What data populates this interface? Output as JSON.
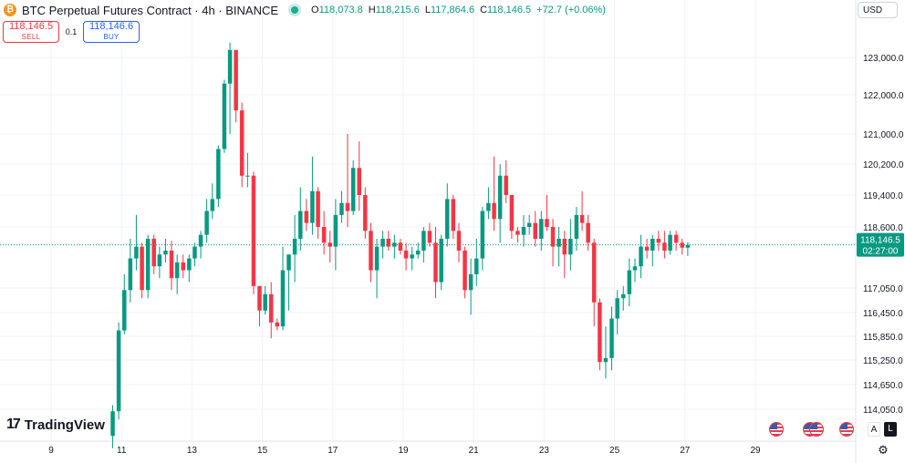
{
  "header": {
    "symbol": "BTC Perpetual Futures Contract · 4h · BINANCE",
    "ohlc": {
      "open_label": "O",
      "open": "118,073.8",
      "high_label": "H",
      "high": "118,215.6",
      "low_label": "L",
      "low": "117,864.6",
      "close_label": "C",
      "close": "118,146.5",
      "change": "+72.7 (+0.06%)"
    }
  },
  "trade": {
    "sell_price": "118,146.5",
    "sell_label": "SELL",
    "spread": "0.1",
    "buy_price": "118,146.6",
    "buy_label": "BUY"
  },
  "currency": "USD",
  "logo": {
    "mark": "17",
    "text": "TradingView"
  },
  "scale_buttons": {
    "auto": "A",
    "log": "L"
  },
  "icons": {
    "settings": "gear-icon",
    "symbol": "bitcoin-icon",
    "events": "us-flag-icon"
  },
  "colors": {
    "up": "#089981",
    "down": "#f23645",
    "buy": "#2962ff",
    "grid": "#f0f3fa",
    "price_line": "#089981"
  },
  "chart_data": {
    "type": "candlestick",
    "price_axis_labels": [
      "123,000.0",
      "122,000.0",
      "121,000.0",
      "120,200.0",
      "119,400.0",
      "118,600.0",
      "117,050.0",
      "116,450.0",
      "115,850.0",
      "115,250.0",
      "114,650.0",
      "114,050.0"
    ],
    "price_axis_values": [
      123000,
      122000,
      121000,
      120200,
      119400,
      118600,
      117050,
      116450,
      115850,
      115250,
      114650,
      114050
    ],
    "time_axis_labels": [
      "9",
      "11",
      "13",
      "15",
      "17",
      "19",
      "21",
      "23",
      "25",
      "27",
      "29"
    ],
    "time_axis_days": [
      9,
      11,
      13,
      15,
      17,
      19,
      21,
      23,
      25,
      27,
      29
    ],
    "current_price": {
      "label": "118,146.5",
      "countdown": "02:27:00",
      "value": 118146.5
    },
    "interval_hours": 4,
    "candles": [
      {
        "d": 10.75,
        "o": 113400,
        "h": 114150,
        "l": 113100,
        "c": 114000
      },
      {
        "d": 10.92,
        "o": 114000,
        "h": 116200,
        "l": 113800,
        "c": 116000
      },
      {
        "d": 11.08,
        "o": 116000,
        "h": 117400,
        "l": 115900,
        "c": 117000
      },
      {
        "d": 11.25,
        "o": 117000,
        "h": 118300,
        "l": 116700,
        "c": 117800
      },
      {
        "d": 11.42,
        "o": 117800,
        "h": 118900,
        "l": 117500,
        "c": 118100
      },
      {
        "d": 11.58,
        "o": 118100,
        "h": 118200,
        "l": 116800,
        "c": 117000
      },
      {
        "d": 11.75,
        "o": 117000,
        "h": 118400,
        "l": 116800,
        "c": 118300
      },
      {
        "d": 11.92,
        "o": 118300,
        "h": 118400,
        "l": 117400,
        "c": 117600
      },
      {
        "d": 12.08,
        "o": 117600,
        "h": 118100,
        "l": 117300,
        "c": 117900
      },
      {
        "d": 12.25,
        "o": 117900,
        "h": 118300,
        "l": 117700,
        "c": 118000
      },
      {
        "d": 12.42,
        "o": 118000,
        "h": 118250,
        "l": 117000,
        "c": 117300
      },
      {
        "d": 12.58,
        "o": 117300,
        "h": 117900,
        "l": 116900,
        "c": 117700
      },
      {
        "d": 12.75,
        "o": 117700,
        "h": 117900,
        "l": 117300,
        "c": 117500
      },
      {
        "d": 12.92,
        "o": 117500,
        "h": 117900,
        "l": 117200,
        "c": 117800
      },
      {
        "d": 13.08,
        "o": 117800,
        "h": 118200,
        "l": 117600,
        "c": 118100
      },
      {
        "d": 13.25,
        "o": 118100,
        "h": 118500,
        "l": 117800,
        "c": 118400
      },
      {
        "d": 13.42,
        "o": 118400,
        "h": 119300,
        "l": 118200,
        "c": 119000
      },
      {
        "d": 13.58,
        "o": 119000,
        "h": 119700,
        "l": 118800,
        "c": 119300
      },
      {
        "d": 13.75,
        "o": 119300,
        "h": 120700,
        "l": 119100,
        "c": 120600
      },
      {
        "d": 13.92,
        "o": 120600,
        "h": 122400,
        "l": 120500,
        "c": 122300
      },
      {
        "d": 14.08,
        "o": 122300,
        "h": 123400,
        "l": 121000,
        "c": 123200
      },
      {
        "d": 14.25,
        "o": 123200,
        "h": 123200,
        "l": 121300,
        "c": 121600
      },
      {
        "d": 14.42,
        "o": 121600,
        "h": 121800,
        "l": 119600,
        "c": 119900
      },
      {
        "d": 14.58,
        "o": 119900,
        "h": 120500,
        "l": 119600,
        "c": 119900
      },
      {
        "d": 14.75,
        "o": 119900,
        "h": 120000,
        "l": 116900,
        "c": 117100
      },
      {
        "d": 14.92,
        "o": 117100,
        "h": 117100,
        "l": 116100,
        "c": 116500
      },
      {
        "d": 15.08,
        "o": 116500,
        "h": 117100,
        "l": 116400,
        "c": 116900
      },
      {
        "d": 15.25,
        "o": 116900,
        "h": 117200,
        "l": 115800,
        "c": 116200
      },
      {
        "d": 15.42,
        "o": 116200,
        "h": 116300,
        "l": 116000,
        "c": 116100
      },
      {
        "d": 15.58,
        "o": 116100,
        "h": 118100,
        "l": 116000,
        "c": 117500
      },
      {
        "d": 15.75,
        "o": 117500,
        "h": 117800,
        "l": 116500,
        "c": 117900
      },
      {
        "d": 15.92,
        "o": 117900,
        "h": 118900,
        "l": 117200,
        "c": 118300
      },
      {
        "d": 16.08,
        "o": 118300,
        "h": 119600,
        "l": 118000,
        "c": 119000
      },
      {
        "d": 16.25,
        "o": 119000,
        "h": 119300,
        "l": 118500,
        "c": 118700
      },
      {
        "d": 16.42,
        "o": 118700,
        "h": 120400,
        "l": 118400,
        "c": 119500
      },
      {
        "d": 16.58,
        "o": 119500,
        "h": 119600,
        "l": 118300,
        "c": 118600
      },
      {
        "d": 16.75,
        "o": 118600,
        "h": 119000,
        "l": 117900,
        "c": 118200
      },
      {
        "d": 16.92,
        "o": 118200,
        "h": 118500,
        "l": 117700,
        "c": 118100
      },
      {
        "d": 17.08,
        "o": 118100,
        "h": 119300,
        "l": 117500,
        "c": 118900
      },
      {
        "d": 17.25,
        "o": 118900,
        "h": 119500,
        "l": 118700,
        "c": 119200
      },
      {
        "d": 17.42,
        "o": 119200,
        "h": 121000,
        "l": 118600,
        "c": 119000
      },
      {
        "d": 17.58,
        "o": 119000,
        "h": 120300,
        "l": 118900,
        "c": 120100
      },
      {
        "d": 17.75,
        "o": 120100,
        "h": 120800,
        "l": 119000,
        "c": 119400
      },
      {
        "d": 17.92,
        "o": 119400,
        "h": 119600,
        "l": 118300,
        "c": 118500
      },
      {
        "d": 18.08,
        "o": 118500,
        "h": 118700,
        "l": 117200,
        "c": 117500
      },
      {
        "d": 18.25,
        "o": 117500,
        "h": 118300,
        "l": 116800,
        "c": 118100
      },
      {
        "d": 18.42,
        "o": 118100,
        "h": 118500,
        "l": 117800,
        "c": 118300
      },
      {
        "d": 18.58,
        "o": 118300,
        "h": 118500,
        "l": 118000,
        "c": 118100
      },
      {
        "d": 18.75,
        "o": 118100,
        "h": 118400,
        "l": 117800,
        "c": 118200
      },
      {
        "d": 18.92,
        "o": 118200,
        "h": 118300,
        "l": 117900,
        "c": 118000
      },
      {
        "d": 19.08,
        "o": 118000,
        "h": 118200,
        "l": 117500,
        "c": 117800
      },
      {
        "d": 19.25,
        "o": 117800,
        "h": 118100,
        "l": 117500,
        "c": 117900
      },
      {
        "d": 19.42,
        "o": 117900,
        "h": 118200,
        "l": 117800,
        "c": 118000
      },
      {
        "d": 19.58,
        "o": 118000,
        "h": 118600,
        "l": 117700,
        "c": 118500
      },
      {
        "d": 19.75,
        "o": 118500,
        "h": 118700,
        "l": 118100,
        "c": 118200
      },
      {
        "d": 19.92,
        "o": 118200,
        "h": 118600,
        "l": 116800,
        "c": 117200
      },
      {
        "d": 20.08,
        "o": 117200,
        "h": 118400,
        "l": 117000,
        "c": 118300
      },
      {
        "d": 20.25,
        "o": 118300,
        "h": 119700,
        "l": 118100,
        "c": 119300
      },
      {
        "d": 20.42,
        "o": 119300,
        "h": 119400,
        "l": 118300,
        "c": 118500
      },
      {
        "d": 20.58,
        "o": 118500,
        "h": 118700,
        "l": 117700,
        "c": 118000
      },
      {
        "d": 20.75,
        "o": 118000,
        "h": 118100,
        "l": 116800,
        "c": 117000
      },
      {
        "d": 20.92,
        "o": 117000,
        "h": 117800,
        "l": 116400,
        "c": 117400
      },
      {
        "d": 21.08,
        "o": 117400,
        "h": 118300,
        "l": 117100,
        "c": 117800
      },
      {
        "d": 21.25,
        "o": 117800,
        "h": 119100,
        "l": 117500,
        "c": 119000
      },
      {
        "d": 21.42,
        "o": 119000,
        "h": 119600,
        "l": 118800,
        "c": 119200
      },
      {
        "d": 21.58,
        "o": 119200,
        "h": 120400,
        "l": 118500,
        "c": 118800
      },
      {
        "d": 21.75,
        "o": 118800,
        "h": 120200,
        "l": 118200,
        "c": 119900
      },
      {
        "d": 21.92,
        "o": 119900,
        "h": 120300,
        "l": 119200,
        "c": 119400
      },
      {
        "d": 22.08,
        "o": 119400,
        "h": 119400,
        "l": 118300,
        "c": 118500
      },
      {
        "d": 22.25,
        "o": 118500,
        "h": 118600,
        "l": 118200,
        "c": 118400
      },
      {
        "d": 22.42,
        "o": 118400,
        "h": 118900,
        "l": 118100,
        "c": 118600
      },
      {
        "d": 22.58,
        "o": 118600,
        "h": 118900,
        "l": 118400,
        "c": 118700
      },
      {
        "d": 22.75,
        "o": 118700,
        "h": 119000,
        "l": 118100,
        "c": 118300
      },
      {
        "d": 22.92,
        "o": 118300,
        "h": 119000,
        "l": 118000,
        "c": 118800
      },
      {
        "d": 23.08,
        "o": 118800,
        "h": 119400,
        "l": 118500,
        "c": 118600
      },
      {
        "d": 23.25,
        "o": 118600,
        "h": 118800,
        "l": 117600,
        "c": 118100
      },
      {
        "d": 23.42,
        "o": 118100,
        "h": 118600,
        "l": 117600,
        "c": 118300
      },
      {
        "d": 23.58,
        "o": 118300,
        "h": 118500,
        "l": 117300,
        "c": 117900
      },
      {
        "d": 23.75,
        "o": 117900,
        "h": 118800,
        "l": 117500,
        "c": 118300
      },
      {
        "d": 23.92,
        "o": 118300,
        "h": 119100,
        "l": 118000,
        "c": 118900
      },
      {
        "d": 24.08,
        "o": 118900,
        "h": 119500,
        "l": 118500,
        "c": 118700
      },
      {
        "d": 24.25,
        "o": 118700,
        "h": 118900,
        "l": 118000,
        "c": 118200
      },
      {
        "d": 24.42,
        "o": 118200,
        "h": 118300,
        "l": 116100,
        "c": 116700
      },
      {
        "d": 24.58,
        "o": 116700,
        "h": 116800,
        "l": 115000,
        "c": 115200
      },
      {
        "d": 24.75,
        "o": 115200,
        "h": 116100,
        "l": 114800,
        "c": 115300
      },
      {
        "d": 24.92,
        "o": 115300,
        "h": 116600,
        "l": 115000,
        "c": 116300
      },
      {
        "d": 25.08,
        "o": 116300,
        "h": 117000,
        "l": 115900,
        "c": 116800
      },
      {
        "d": 25.25,
        "o": 116800,
        "h": 117100,
        "l": 116500,
        "c": 116900
      },
      {
        "d": 25.42,
        "o": 116900,
        "h": 117800,
        "l": 116600,
        "c": 117500
      },
      {
        "d": 25.58,
        "o": 117500,
        "h": 117800,
        "l": 117200,
        "c": 117600
      },
      {
        "d": 25.75,
        "o": 117600,
        "h": 118400,
        "l": 117300,
        "c": 118100
      },
      {
        "d": 25.92,
        "o": 118100,
        "h": 118300,
        "l": 117800,
        "c": 118000
      },
      {
        "d": 26.08,
        "o": 118000,
        "h": 118400,
        "l": 117600,
        "c": 118300
      },
      {
        "d": 26.25,
        "o": 118300,
        "h": 118500,
        "l": 118000,
        "c": 118200
      },
      {
        "d": 26.42,
        "o": 118200,
        "h": 118500,
        "l": 117800,
        "c": 118000
      },
      {
        "d": 26.58,
        "o": 118000,
        "h": 118500,
        "l": 117900,
        "c": 118400
      },
      {
        "d": 26.75,
        "o": 118400,
        "h": 118500,
        "l": 118000,
        "c": 118200
      },
      {
        "d": 26.92,
        "o": 118200,
        "h": 118300,
        "l": 117900,
        "c": 118073.8
      },
      {
        "d": 27.08,
        "o": 118073.8,
        "h": 118215.6,
        "l": 117864.6,
        "c": 118146.5
      }
    ]
  }
}
